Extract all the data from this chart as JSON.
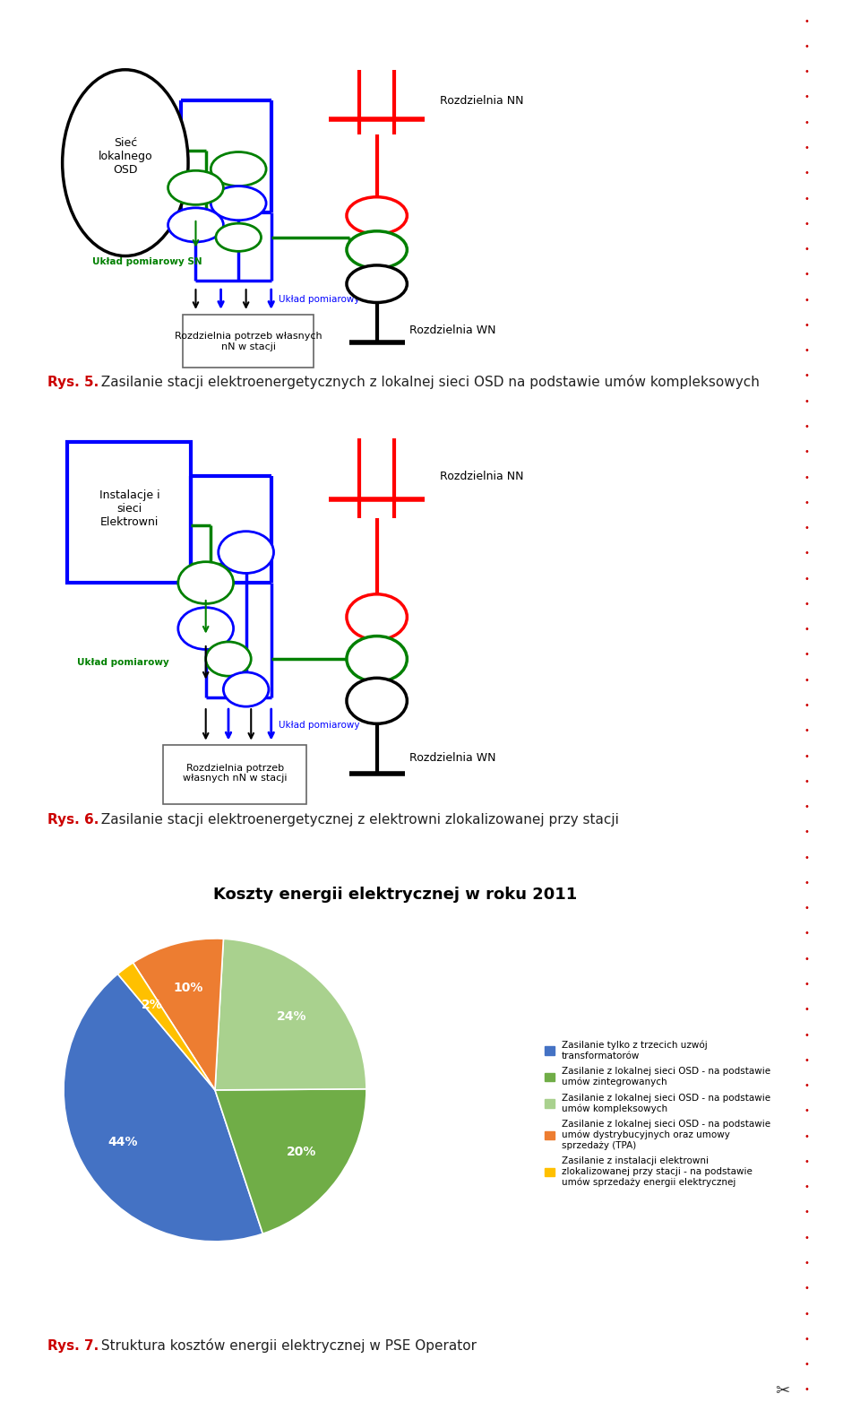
{
  "page_bg": "#ffffff",
  "fig_width": 9.6,
  "fig_height": 15.74,
  "dpi": 100,
  "caption1": {
    "prefix": "Rys. 5.",
    "text": " Zasilanie stacji elektroenergetycznych z lokalnej sieci OSD na podstawie umów kompleksowych",
    "color_prefix": "#cc0000",
    "color_text": "#222222",
    "fontsize": 11
  },
  "caption2": {
    "prefix": "Rys. 6.",
    "text": " Zasilanie stacji elektroenergetycznej z elektrowni zlokalizowanej przy stacji",
    "color_prefix": "#cc0000",
    "color_text": "#222222",
    "fontsize": 11
  },
  "pie_chart": {
    "title": "Koszty energii elektrycznej w roku 2011",
    "title_fontsize": 13,
    "slices": [
      44,
      20,
      24,
      10,
      2
    ],
    "colors": [
      "#4472c4",
      "#70ad47",
      "#a9d18e",
      "#ed7d31",
      "#ffc000"
    ],
    "legend_labels": [
      "Zasilanie tylko z trzecich uzwój\ntransformatorów",
      "Zasilanie z lokalnej sieci OSD - na podstawie\numów zintegrowanych",
      "Zasilanie z lokalnej sieci OSD - na podstawie\numów kompleksowych",
      "Zasilanie z lokalnej sieci OSD - na podstawie\numów dystrybucyjnych oraz umowy\nsprzedaży (TPA)",
      "Zasilanie z instalacji elektrowni\nzlokalizowanej przy stacji - na podstawie\numów sprzedaży energii elektrycznej"
    ]
  },
  "caption3": {
    "prefix": "Rys. 7.",
    "text": " Struktura kosztów energii elektrycznej w PSE Operator",
    "color_prefix": "#cc0000",
    "color_text": "#222222",
    "fontsize": 11
  }
}
